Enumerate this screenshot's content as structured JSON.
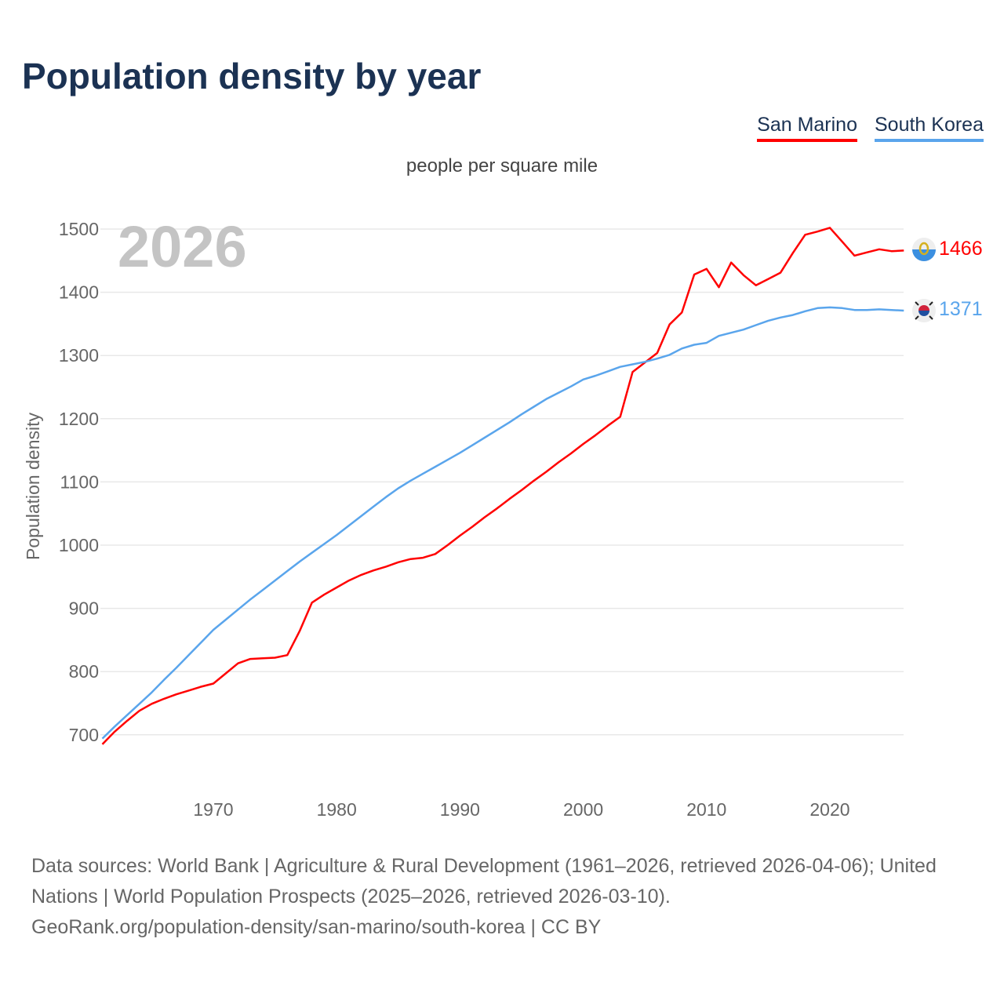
{
  "title": "Population density by year",
  "subtitle": "people per square mile",
  "year_watermark": "2026",
  "source": {
    "line1": "Data sources: World Bank | Agriculture & Rural Development (1961–2026, retrieved 2026-04-06); United Nations | World Population Prospects (2025–2026, retrieved 2026-03-10).",
    "line2": "GeoRank.org/population-density/san-marino/south-korea | CC BY"
  },
  "chart_data": {
    "type": "line",
    "title": "Population density by year",
    "ylabel": "Population density",
    "xlabel": "",
    "ylim": [
      640,
      1510
    ],
    "xlim": [
      1961,
      2026
    ],
    "yticks": [
      700,
      800,
      900,
      1000,
      1100,
      1200,
      1300,
      1400,
      1500
    ],
    "xticks": [
      1970,
      1980,
      1990,
      2000,
      2010,
      2020
    ],
    "grid": true,
    "legend_position": "top-right",
    "x": [
      1961,
      1962,
      1963,
      1964,
      1965,
      1966,
      1967,
      1968,
      1969,
      1970,
      1971,
      1972,
      1973,
      1974,
      1975,
      1976,
      1977,
      1978,
      1979,
      1980,
      1981,
      1982,
      1983,
      1984,
      1985,
      1986,
      1987,
      1988,
      1989,
      1990,
      1991,
      1992,
      1993,
      1994,
      1995,
      1996,
      1997,
      1998,
      1999,
      2000,
      2001,
      2002,
      2003,
      2004,
      2005,
      2006,
      2007,
      2008,
      2009,
      2010,
      2011,
      2012,
      2013,
      2014,
      2015,
      2016,
      2017,
      2018,
      2019,
      2020,
      2021,
      2022,
      2023,
      2024,
      2025,
      2026
    ],
    "series": [
      {
        "name": "San Marino",
        "color": "#ff0000",
        "end_label": "1466",
        "values": [
          685,
          705,
          722,
          738,
          749,
          757,
          764,
          770,
          776,
          781,
          797,
          813,
          820,
          821,
          822,
          826,
          864,
          909,
          922,
          933,
          944,
          953,
          960,
          966,
          973,
          978,
          980,
          986,
          1000,
          1015,
          1029,
          1044,
          1058,
          1073,
          1087,
          1102,
          1116,
          1131,
          1145,
          1160,
          1174,
          1189,
          1203,
          1274,
          1289,
          1304,
          1349,
          1368,
          1428,
          1437,
          1408,
          1447,
          1427,
          1411,
          1421,
          1431,
          1462,
          1491,
          1496,
          1502,
          1480,
          1458,
          1463,
          1468,
          1465,
          1466
        ]
      },
      {
        "name": "South Korea",
        "color": "#5aa5ec",
        "end_label": "1371",
        "values": [
          694,
          713,
          731,
          749,
          767,
          787,
          806,
          826,
          846,
          866,
          882,
          898,
          914,
          929,
          944,
          959,
          974,
          988,
          1002,
          1016,
          1031,
          1046,
          1061,
          1076,
          1090,
          1102,
          1113,
          1124,
          1135,
          1146,
          1158,
          1170,
          1182,
          1194,
          1207,
          1219,
          1231,
          1241,
          1251,
          1262,
          1268,
          1275,
          1282,
          1286,
          1290,
          1295,
          1301,
          1311,
          1317,
          1320,
          1331,
          1336,
          1341,
          1348,
          1355,
          1360,
          1364,
          1370,
          1375,
          1376,
          1375,
          1372,
          1372,
          1373,
          1372,
          1371
        ]
      }
    ]
  }
}
